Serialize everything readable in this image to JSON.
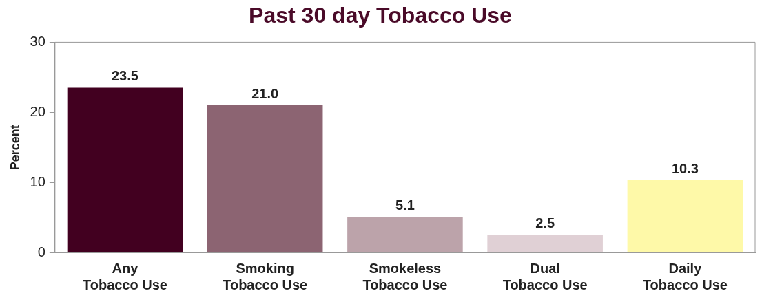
{
  "chart_data": {
    "type": "bar",
    "title": "Past 30 day Tobacco Use",
    "ylabel": "Percent",
    "categories": [
      "Any\nTobacco Use",
      "Smoking\nTobacco Use",
      "Smokeless\nTobacco Use",
      "Dual\nTobacco Use",
      "Daily\nTobacco Use"
    ],
    "values": [
      23.5,
      21.0,
      5.1,
      2.5,
      10.3
    ],
    "colors": [
      "#420020",
      "#8c6472",
      "#bca3aa",
      "#e0d0d5",
      "#fef9a8"
    ],
    "value_labels": [
      "23.5",
      "21.0",
      "5.1",
      "2.5",
      "10.3"
    ],
    "ylim": [
      0,
      30
    ],
    "yticks": [
      0,
      10,
      20,
      30
    ],
    "grid": false,
    "legend": false
  }
}
